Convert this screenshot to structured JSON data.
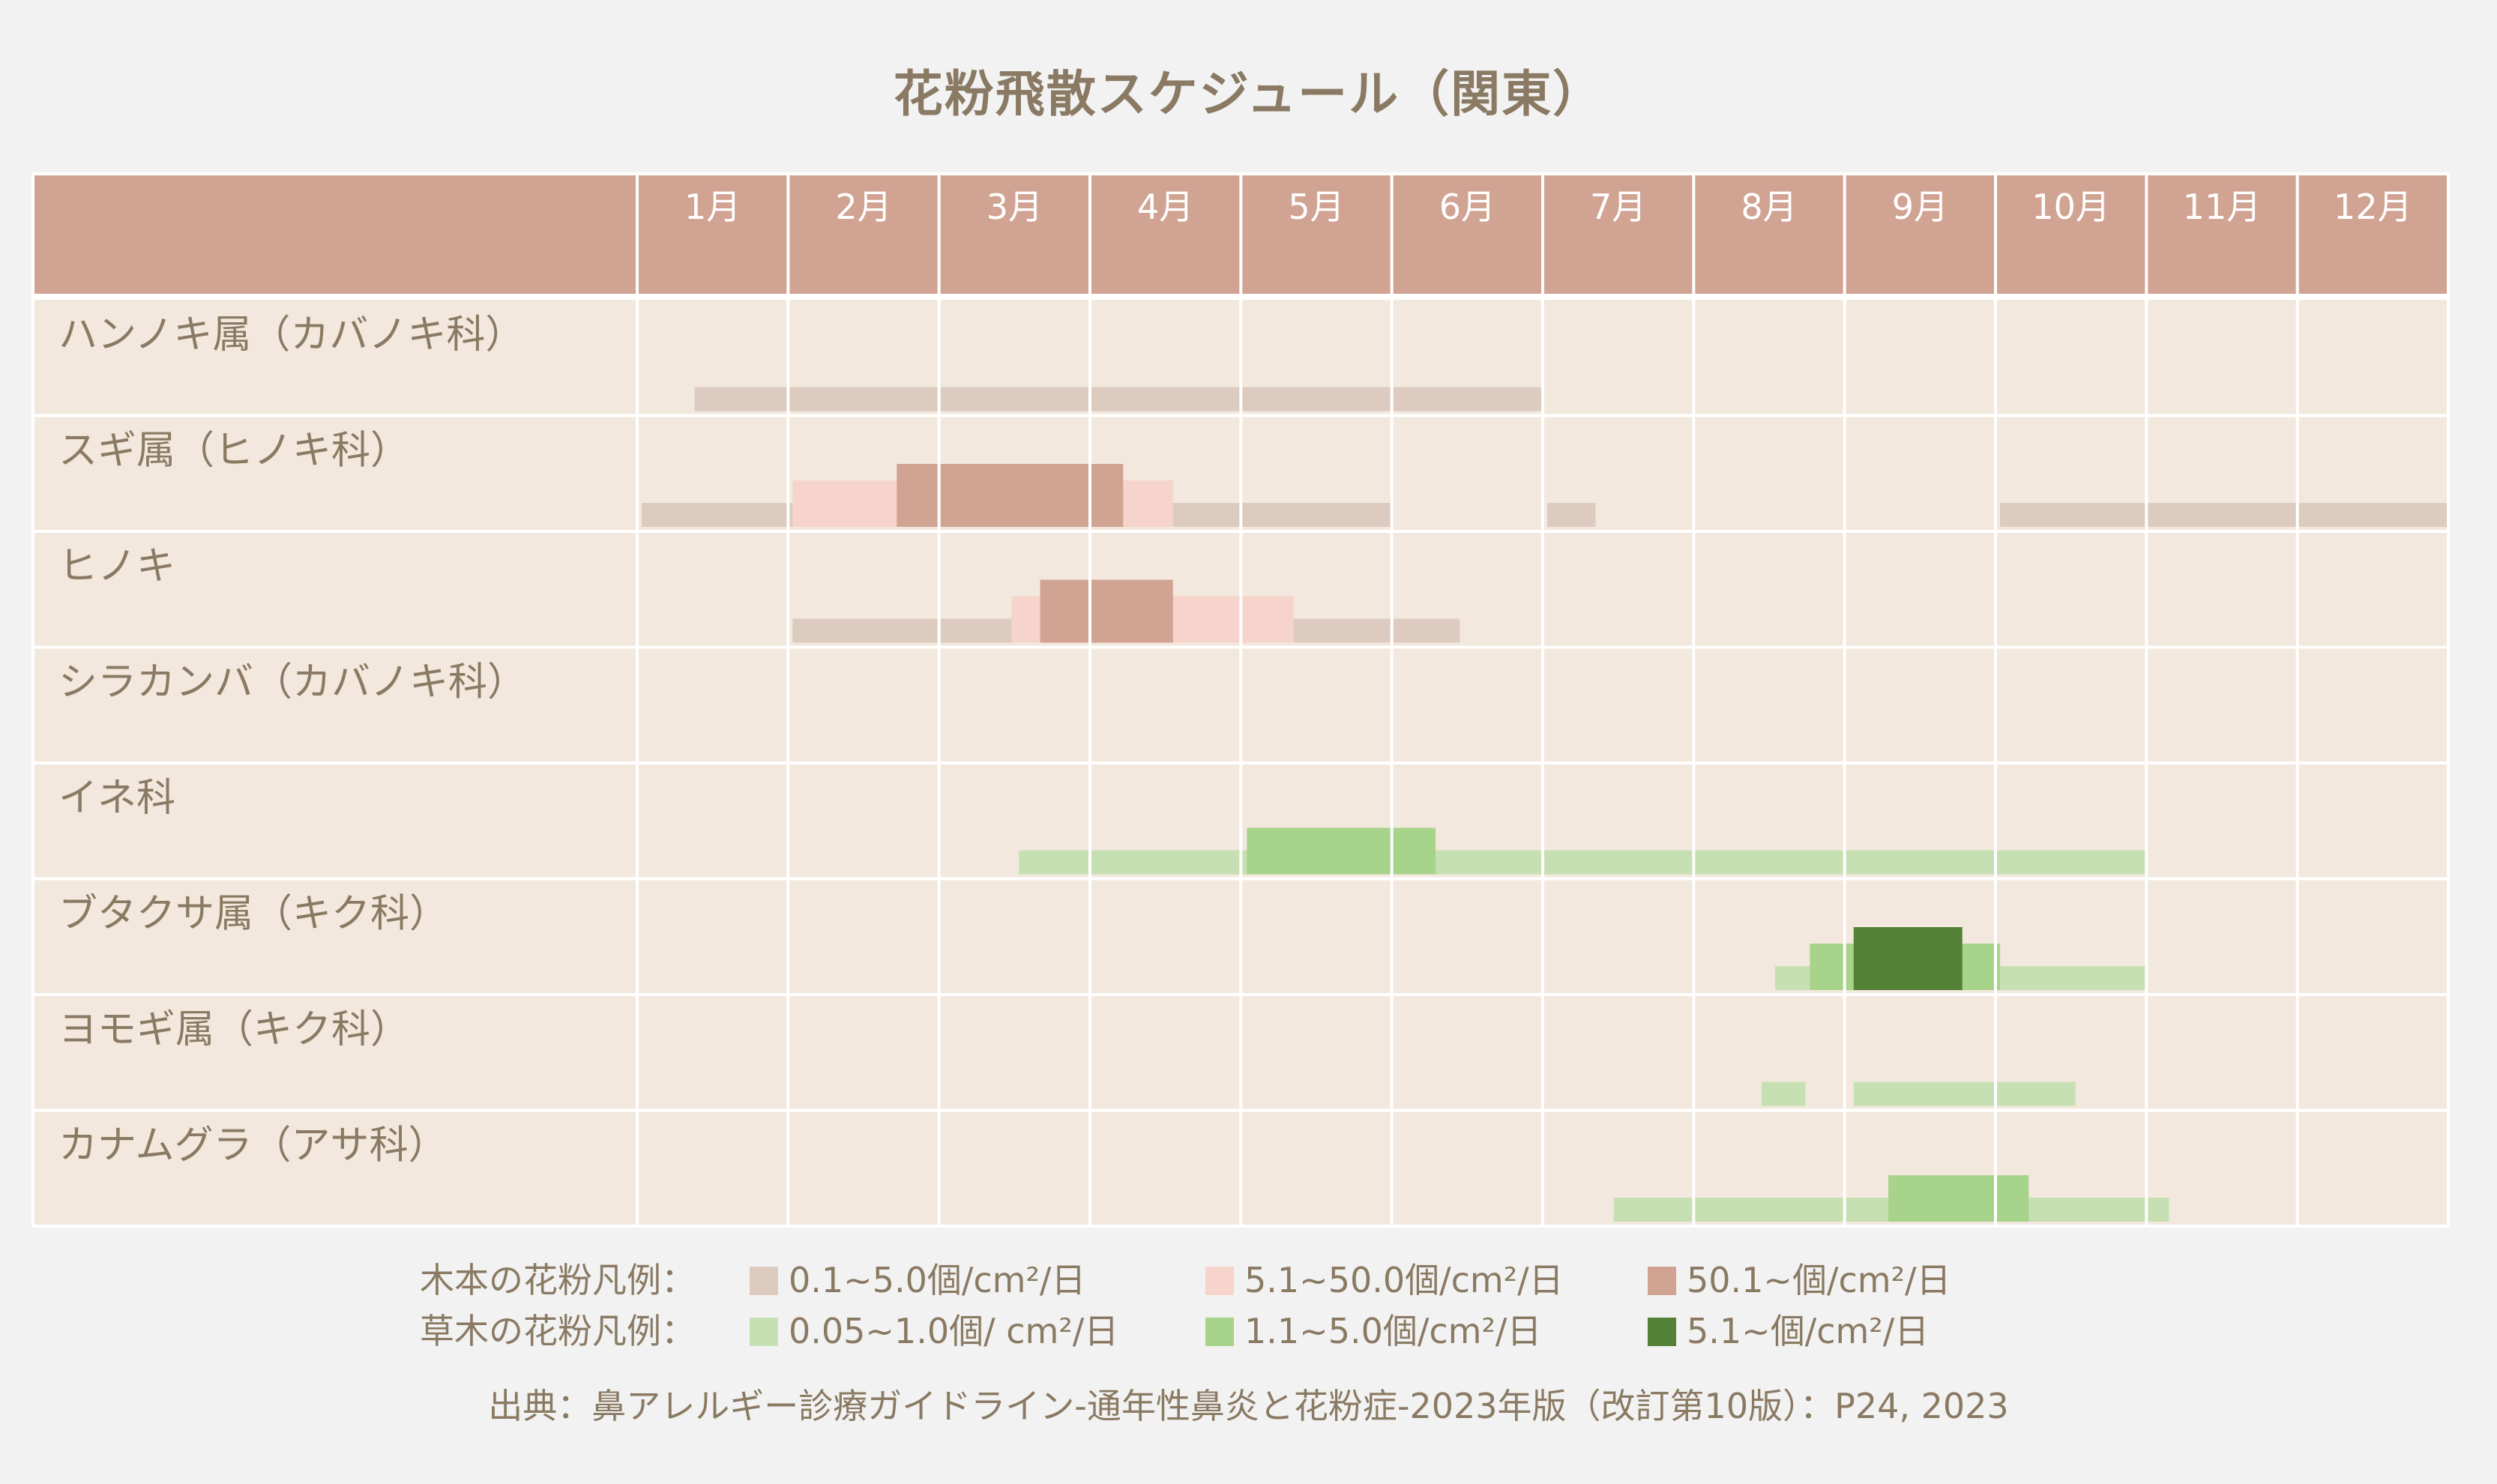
{
  "chart_data": {
    "type": "gantt",
    "title": "花粉飛散スケジュール（関東）",
    "months": [
      "1月",
      "2月",
      "3月",
      "4月",
      "5月",
      "6月",
      "7月",
      "8月",
      "9月",
      "10月",
      "11月",
      "12月"
    ],
    "rows": [
      {
        "label": "ハンノキ属（カバノキ科）",
        "kind": "tree",
        "bars": [
          {
            "level": 1,
            "start": 1.38,
            "end": 6.99
          }
        ]
      },
      {
        "label": "スギ属（ヒノキ科）",
        "kind": "tree",
        "bars": [
          {
            "level": 1,
            "start": 1.03,
            "end": 6.0
          },
          {
            "level": 1,
            "start": 7.03,
            "end": 7.35
          },
          {
            "level": 1,
            "start": 10.03,
            "end": 13.0
          },
          {
            "level": 2,
            "start": 2.03,
            "end": 4.55
          },
          {
            "level": 3,
            "start": 2.72,
            "end": 4.22
          }
        ]
      },
      {
        "label": "ヒノキ",
        "kind": "tree",
        "bars": [
          {
            "level": 1,
            "start": 2.03,
            "end": 6.45
          },
          {
            "level": 2,
            "start": 3.48,
            "end": 5.35
          },
          {
            "level": 3,
            "start": 3.67,
            "end": 4.55
          }
        ]
      },
      {
        "label": "シラカンバ（カバノキ科）",
        "kind": "tree",
        "bars": []
      },
      {
        "label": "イネ科",
        "kind": "grass",
        "bars": [
          {
            "level": 1,
            "start": 3.53,
            "end": 11.0
          },
          {
            "level": 2,
            "start": 5.04,
            "end": 6.29
          }
        ]
      },
      {
        "label": "ブタクサ属（キク科）",
        "kind": "grass",
        "bars": [
          {
            "level": 1,
            "start": 8.54,
            "end": 11.0
          },
          {
            "level": 2,
            "start": 8.77,
            "end": 10.03
          },
          {
            "level": 3,
            "start": 9.06,
            "end": 9.78
          }
        ]
      },
      {
        "label": "ヨモギ属（キク科）",
        "kind": "grass",
        "bars": [
          {
            "level": 1,
            "start": 8.45,
            "end": 8.74
          },
          {
            "level": 1,
            "start": 9.06,
            "end": 10.53
          }
        ]
      },
      {
        "label": "カナムグラ（アサ科）",
        "kind": "grass",
        "bars": [
          {
            "level": 1,
            "start": 7.47,
            "end": 11.15
          },
          {
            "level": 2,
            "start": 9.29,
            "end": 10.22
          }
        ]
      }
    ],
    "legend": {
      "tree": {
        "label": "木本の花粉凡例：",
        "items": [
          {
            "text": "0.1~5.0個/cm²/日",
            "color": "#dccbbe"
          },
          {
            "text": "5.1~50.0個/cm²/日",
            "color": "#f6d4cb"
          },
          {
            "text": "50.1~個/cm²/日",
            "color": "#d1a392"
          }
        ]
      },
      "grass": {
        "label": "草木の花粉凡例：",
        "items": [
          {
            "text": "0.05~1.0個/ cm²/日",
            "color": "#c6e0b3"
          },
          {
            "text": "1.1~5.0個/cm²/日",
            "color": "#a7d38b"
          },
          {
            "text": "5.1~個/cm²/日",
            "color": "#538135"
          }
        ]
      }
    },
    "source": "出典：鼻アレルギー診療ガイドライン-通年性鼻炎と花粉症-2023年版（改訂第10版）：P24, 2023"
  },
  "colors": {
    "header_bg": "#d1a392",
    "cell_bg": "#f2e8dd",
    "grid": "#ffffff",
    "text": "#8a7a63",
    "tree": [
      "#dccbbe",
      "#f6d4cb",
      "#d1a392"
    ],
    "grass": [
      "#c6e0b3",
      "#a7d38b",
      "#538135"
    ]
  }
}
